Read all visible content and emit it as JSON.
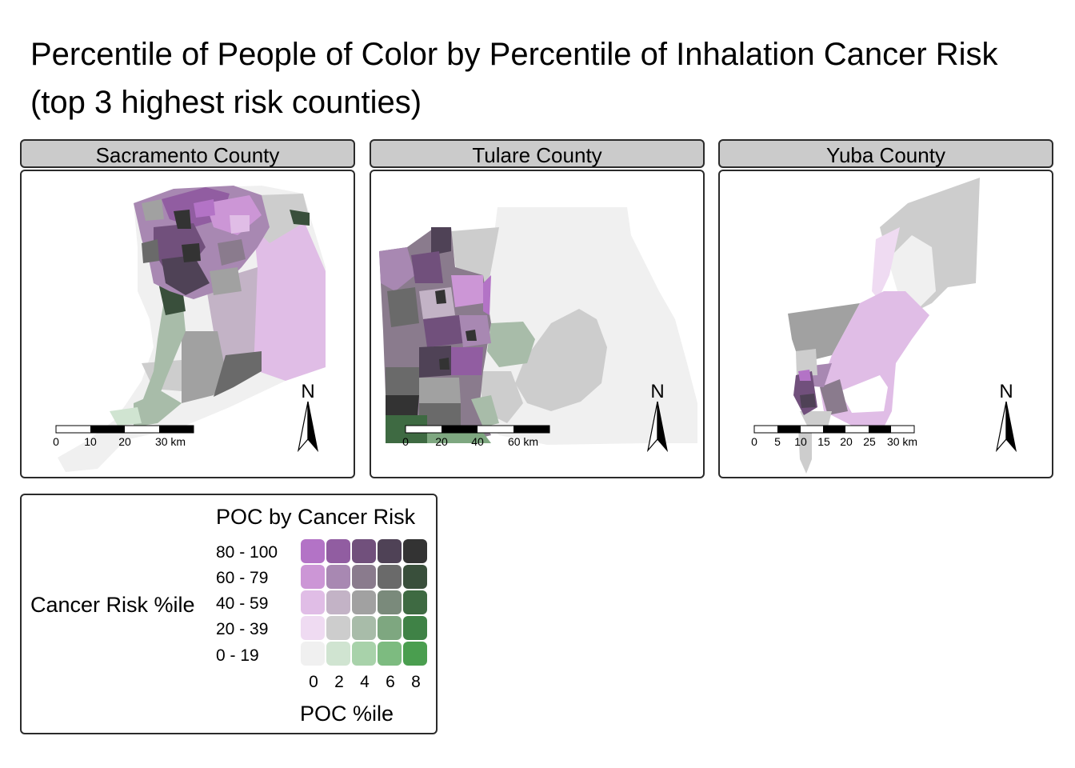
{
  "title_line1": "Percentile of People of Color by Percentile of Inhalation Cancer Risk",
  "title_line2": "(top 3 highest risk counties)",
  "panels": [
    {
      "name": "Sacramento County",
      "scalebar_labels": [
        "0",
        "10",
        "20",
        "30 km"
      ],
      "north_label": "N"
    },
    {
      "name": "Tulare County",
      "scalebar_labels": [
        "0",
        "20",
        "40",
        "60 km"
      ],
      "north_label": "N"
    },
    {
      "name": "Yuba County",
      "scalebar_labels": [
        "0",
        "5",
        "10",
        "15",
        "20",
        "25",
        "30 km"
      ],
      "north_label": "N"
    }
  ],
  "legend": {
    "title": "POC by Cancer Risk",
    "y_title": "Cancer Risk %ile",
    "x_title": "POC %ile",
    "row_labels": [
      "80 - 100",
      "60 - 79",
      "40 - 59",
      "20 - 39",
      "0 - 19"
    ],
    "col_labels": [
      "0",
      "2",
      "4",
      "6",
      "8"
    ],
    "colors": [
      [
        "#b373c6",
        "#915da1",
        "#71507c",
        "#4f4256",
        "#333333"
      ],
      [
        "#cc96d6",
        "#a888b2",
        "#8a7b8d",
        "#6a6a6a",
        "#394f3b"
      ],
      [
        "#e0bde6",
        "#c3b3c6",
        "#a1a1a1",
        "#7a8a7b",
        "#3e6a42"
      ],
      [
        "#efdbf2",
        "#cdcdcd",
        "#a8bca9",
        "#7ea780",
        "#3f8246"
      ],
      [
        "#f0f0f0",
        "#d0e4d1",
        "#a8d2aa",
        "#7dbb80",
        "#4a9e4f"
      ]
    ]
  }
}
